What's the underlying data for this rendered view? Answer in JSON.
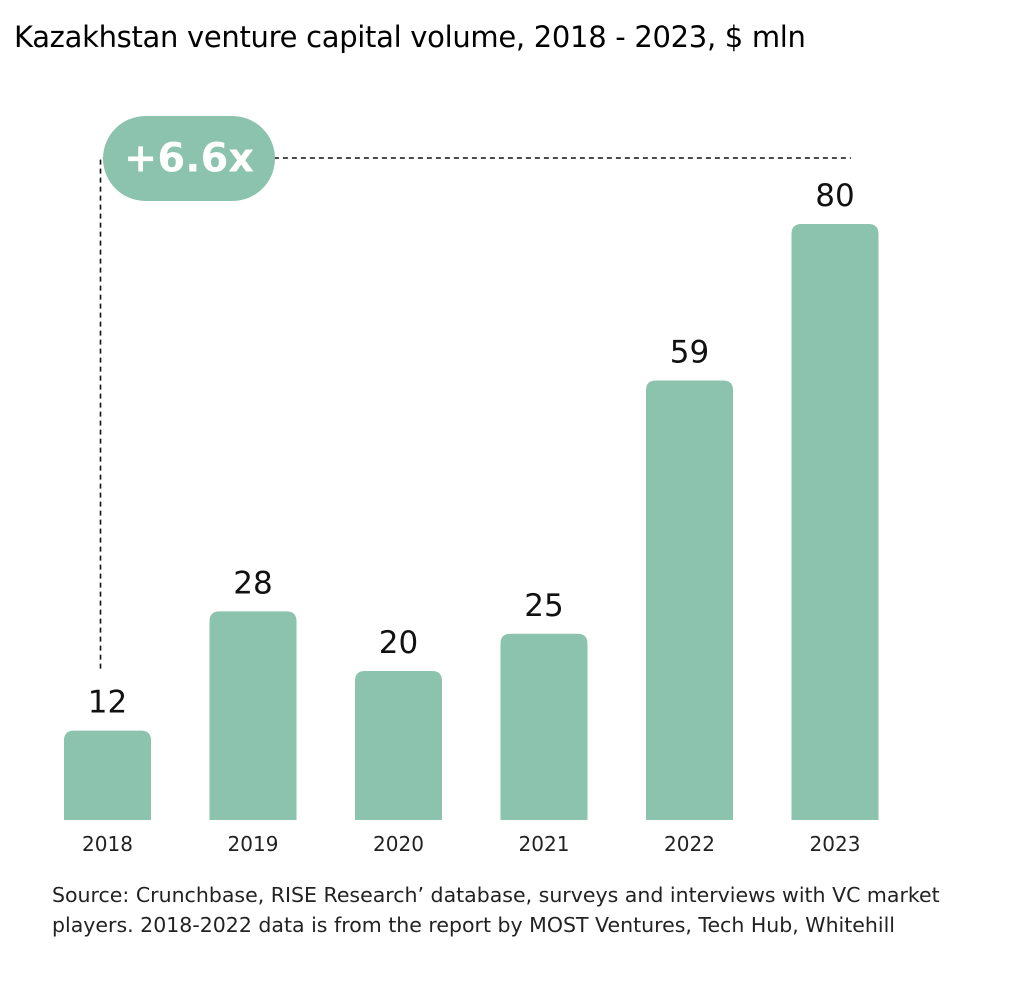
{
  "chart_data": {
    "type": "bar",
    "title": "Kazakhstan venture capital volume, 2018 - 2023, $ mln",
    "categories": [
      "2018",
      "2019",
      "2020",
      "2021",
      "2022",
      "2023"
    ],
    "values": [
      12,
      28,
      20,
      25,
      59,
      80
    ],
    "xlabel": "",
    "ylabel": "",
    "ylim": [
      0,
      80
    ],
    "grid": false,
    "legend": "none",
    "bar_color": "#8bc3ae",
    "annotation": {
      "text": "+6.6x",
      "from_category": "2018",
      "to_category": "2023",
      "badge_color": "#8bc3ae"
    }
  },
  "source": "Source: Crunchbase, RISE Research’ database, surveys and interviews with VC market players. 2018-2022 data is from the report by MOST Ventures, Tech Hub, Whitehill"
}
